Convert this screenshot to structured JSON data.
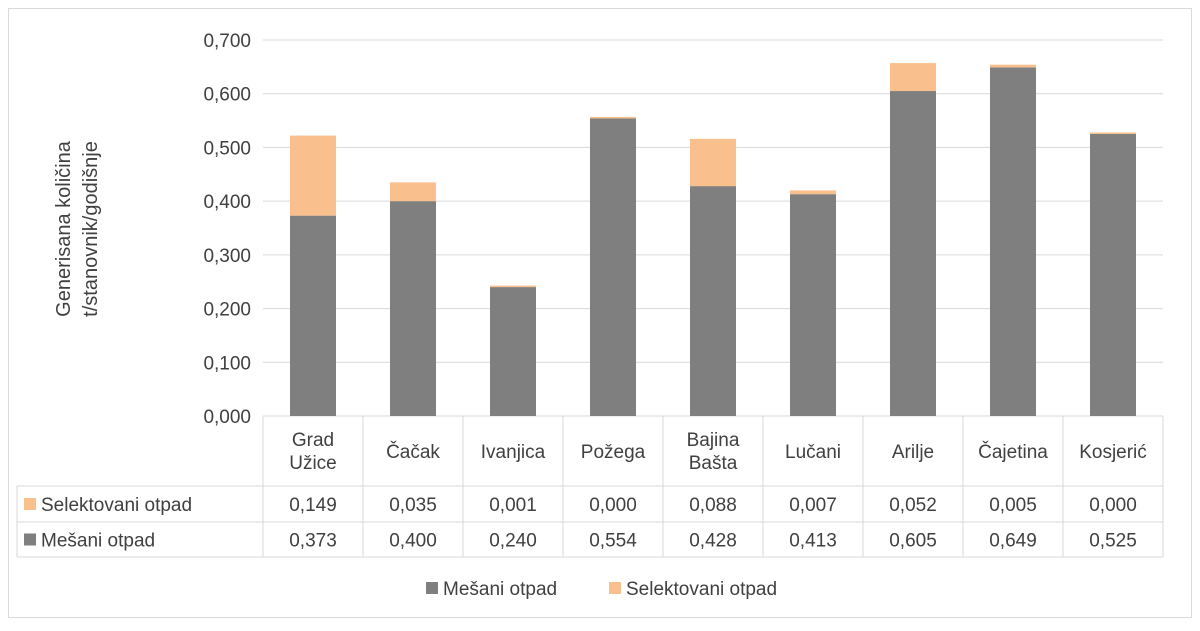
{
  "colors": {
    "mesani": "#7f7f7f",
    "selektovani": "#f9c08e",
    "grid": "#d9d9d9",
    "text": "#404040"
  },
  "chart_data": {
    "type": "bar",
    "stacked": true,
    "ylabel_line1": "Generisana količina",
    "ylabel_line2": "t/stanovnik/godišnje",
    "ylim": [
      0,
      0.7
    ],
    "yticks": [
      0,
      0.1,
      0.2,
      0.3,
      0.4,
      0.5,
      0.6,
      0.7
    ],
    "ytick_labels": [
      "0,000",
      "0,100",
      "0,200",
      "0,300",
      "0,400",
      "0,500",
      "0,600",
      "0,700"
    ],
    "categories": [
      [
        "Grad",
        "Užice"
      ],
      [
        "Čačak"
      ],
      [
        "Ivanjica"
      ],
      [
        "Požega"
      ],
      [
        "Bajina",
        "Bašta"
      ],
      [
        "Lučani"
      ],
      [
        "Arilje"
      ],
      [
        "Čajetina"
      ],
      [
        "Kosjerić"
      ]
    ],
    "series": [
      {
        "name": "Mešani otpad",
        "color": "#7f7f7f",
        "values": [
          0.373,
          0.4,
          0.24,
          0.554,
          0.428,
          0.413,
          0.605,
          0.649,
          0.525
        ],
        "value_labels": [
          "0,373",
          "0,400",
          "0,240",
          "0,554",
          "0,428",
          "0,413",
          "0,605",
          "0,649",
          "0,525"
        ]
      },
      {
        "name": "Selektovani otpad",
        "color": "#f9c08e",
        "values": [
          0.149,
          0.035,
          0.001,
          0.0,
          0.088,
          0.007,
          0.052,
          0.005,
          0.0
        ],
        "value_labels": [
          "0,149",
          "0,035",
          "0,001",
          "0,000",
          "0,088",
          "0,007",
          "0,052",
          "0,005",
          "0,000"
        ]
      }
    ],
    "data_table_rows": [
      "Selektovani otpad",
      "Mešani otpad"
    ],
    "legend": {
      "position": "bottom",
      "entries": [
        "Mešani otpad",
        "Selektovani otpad"
      ]
    },
    "grid": true
  }
}
